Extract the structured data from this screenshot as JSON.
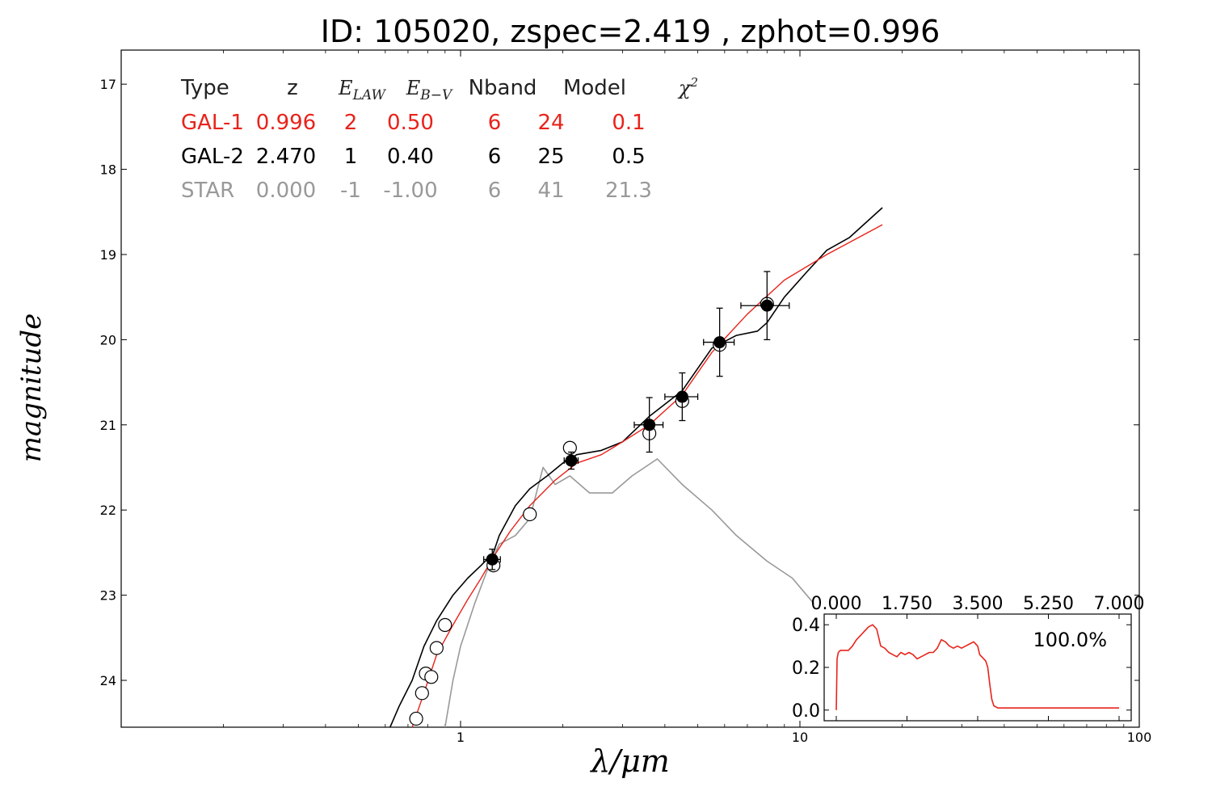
{
  "chart_data": [
    {
      "type": "line",
      "title": "ID:  105020, zspec=2.419 , zphot=0.996",
      "xlabel": "λ/μm",
      "ylabel": "magnitude",
      "x_scale": "log",
      "xlim": [
        0.1,
        100
      ],
      "ylim": [
        24.55,
        16.6
      ],
      "y_inverted": true,
      "xticks": [
        {
          "value": 1,
          "label": "1"
        },
        {
          "value": 10,
          "label": "10"
        },
        {
          "value": 100,
          "label": "100"
        }
      ],
      "yticks": [
        {
          "value": 17,
          "label": "17"
        },
        {
          "value": 18,
          "label": "18"
        },
        {
          "value": 19,
          "label": "19"
        },
        {
          "value": 20,
          "label": "20"
        },
        {
          "value": 21,
          "label": "21"
        },
        {
          "value": 22,
          "label": "22"
        },
        {
          "value": 23,
          "label": "23"
        },
        {
          "value": 24,
          "label": "24"
        }
      ],
      "grid": false,
      "fit_table": {
        "headers": [
          "Type",
          "z",
          "E_LAW",
          "E_B−V",
          "Nband",
          "Model",
          "χ²"
        ],
        "rows": [
          {
            "color": "#e8231b",
            "cells": [
              "GAL-1",
              "0.996",
              "2",
              "0.50",
              "6",
              "24",
              "0.1"
            ]
          },
          {
            "color": "#000000",
            "cells": [
              "GAL-2",
              "2.470",
              "1",
              "0.40",
              "6",
              "25",
              "0.5"
            ]
          },
          {
            "color": "#999999",
            "cells": [
              "STAR",
              "0.000",
              "-1",
              "-1.00",
              "6",
              "41",
              "21.3"
            ]
          }
        ]
      },
      "series": [
        {
          "color": "#e8231b",
          "x": [
            0.72,
            0.78,
            0.85,
            0.95,
            1.05,
            1.15,
            1.25,
            1.4,
            1.6,
            1.9,
            2.2,
            2.6,
            3.0,
            3.6,
            4.5,
            5.5,
            7.0,
            9.0,
            12.0,
            17.5
          ],
          "y": [
            24.55,
            24.15,
            23.7,
            23.35,
            23.05,
            22.8,
            22.55,
            22.25,
            21.95,
            21.65,
            21.45,
            21.35,
            21.2,
            21.0,
            20.65,
            20.15,
            19.7,
            19.3,
            19.0,
            18.65
          ]
        },
        {
          "color": "#000000",
          "x": [
            0.62,
            0.66,
            0.72,
            0.78,
            0.85,
            0.95,
            1.05,
            1.15,
            1.25,
            1.3,
            1.45,
            1.6,
            1.8,
            2.0,
            2.2,
            2.6,
            3.0,
            3.6,
            4.5,
            5.5,
            6.5,
            7.5,
            8.0,
            9.0,
            10.5,
            12.0,
            14.0,
            17.5
          ],
          "y": [
            24.55,
            24.3,
            24.0,
            23.6,
            23.3,
            23.0,
            22.8,
            22.65,
            22.5,
            22.3,
            21.95,
            21.75,
            21.6,
            21.45,
            21.35,
            21.3,
            21.2,
            20.9,
            20.6,
            20.1,
            19.95,
            19.9,
            19.8,
            19.5,
            19.2,
            18.95,
            18.8,
            18.45
          ]
        },
        {
          "color": "#999999",
          "x": [
            0.9,
            0.95,
            1.0,
            1.1,
            1.2,
            1.3,
            1.45,
            1.6,
            1.75,
            1.9,
            2.1,
            2.4,
            2.8,
            3.2,
            3.8,
            4.5,
            5.5,
            6.5,
            8.0,
            9.5,
            11.0
          ],
          "y": [
            24.55,
            24.0,
            23.6,
            23.1,
            22.7,
            22.4,
            22.3,
            22.1,
            21.5,
            21.7,
            21.6,
            21.8,
            21.8,
            21.6,
            21.4,
            21.7,
            22.0,
            22.3,
            22.6,
            22.8,
            23.1
          ]
        }
      ],
      "observed_points": [
        {
          "x": 1.24,
          "y": 22.58,
          "xerr": 0.07,
          "yerr": 0.12
        },
        {
          "x": 2.12,
          "y": 21.42,
          "xerr": 0.1,
          "yerr": 0.1
        },
        {
          "x": 3.6,
          "y": 21.0,
          "xerr": 0.35,
          "yerr": 0.32
        },
        {
          "x": 4.5,
          "y": 20.67,
          "xerr": 0.5,
          "yerr": 0.28
        },
        {
          "x": 5.8,
          "y": 20.03,
          "xerr": 0.6,
          "yerr": 0.4
        },
        {
          "x": 8.0,
          "y": 19.6,
          "xerr": 1.3,
          "yerr": 0.4
        }
      ],
      "model_points": [
        {
          "x": 0.74,
          "y": 24.45
        },
        {
          "x": 0.77,
          "y": 24.15
        },
        {
          "x": 0.79,
          "y": 23.92
        },
        {
          "x": 0.82,
          "y": 23.96
        },
        {
          "x": 0.85,
          "y": 23.62
        },
        {
          "x": 0.9,
          "y": 23.35
        },
        {
          "x": 1.25,
          "y": 22.65
        },
        {
          "x": 1.6,
          "y": 22.05
        },
        {
          "x": 2.1,
          "y": 21.27
        },
        {
          "x": 3.6,
          "y": 21.1
        },
        {
          "x": 4.5,
          "y": 20.72
        },
        {
          "x": 5.8,
          "y": 20.06
        },
        {
          "x": 8.0,
          "y": 19.58
        }
      ]
    },
    {
      "type": "line",
      "inset": true,
      "xlim": [
        -0.3,
        7.3
      ],
      "ylim": [
        -0.05,
        0.45
      ],
      "xticks": [
        {
          "value": 0,
          "label": "0.000"
        },
        {
          "value": 1.75,
          "label": "1.750"
        },
        {
          "value": 3.5,
          "label": "3.500"
        },
        {
          "value": 5.25,
          "label": "5.250"
        },
        {
          "value": 7.0,
          "label": "7.000"
        }
      ],
      "yticks": [
        {
          "value": 0.0,
          "label": "0.0"
        },
        {
          "value": 0.2,
          "label": "0.2"
        },
        {
          "value": 0.4,
          "label": "0.4"
        }
      ],
      "annotation": "100.0%",
      "series": [
        {
          "color": "#e8231b",
          "x": [
            0.0,
            0.02,
            0.05,
            0.1,
            0.2,
            0.3,
            0.4,
            0.5,
            0.6,
            0.7,
            0.8,
            0.9,
            1.0,
            1.05,
            1.1,
            1.2,
            1.3,
            1.4,
            1.5,
            1.6,
            1.7,
            1.8,
            1.9,
            2.0,
            2.1,
            2.2,
            2.3,
            2.4,
            2.5,
            2.6,
            2.7,
            2.8,
            2.9,
            3.0,
            3.1,
            3.2,
            3.3,
            3.4,
            3.5,
            3.55,
            3.6,
            3.65,
            3.7,
            3.75,
            3.8,
            3.85,
            3.9,
            4.0,
            4.5,
            5.0,
            5.5,
            6.0,
            6.5,
            7.0
          ],
          "y": [
            0.0,
            0.24,
            0.27,
            0.28,
            0.28,
            0.28,
            0.3,
            0.33,
            0.35,
            0.37,
            0.39,
            0.4,
            0.38,
            0.34,
            0.3,
            0.29,
            0.27,
            0.26,
            0.25,
            0.27,
            0.26,
            0.27,
            0.26,
            0.24,
            0.25,
            0.26,
            0.27,
            0.27,
            0.29,
            0.33,
            0.32,
            0.3,
            0.29,
            0.3,
            0.29,
            0.3,
            0.31,
            0.32,
            0.3,
            0.26,
            0.25,
            0.24,
            0.23,
            0.2,
            0.12,
            0.05,
            0.02,
            0.01,
            0.01,
            0.01,
            0.01,
            0.01,
            0.01,
            0.01
          ]
        }
      ]
    }
  ]
}
